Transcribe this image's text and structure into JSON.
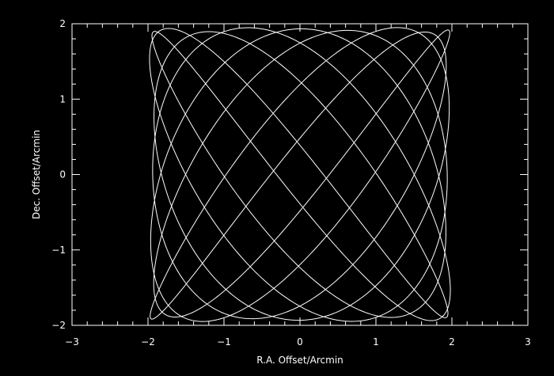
{
  "colors": {
    "background": "#000000",
    "foreground": "#ffffff"
  },
  "chart_data": {
    "type": "line",
    "title": "",
    "xlabel": "R.A. Offset/Arcmin",
    "ylabel": "Dec. Offset/Arcmin",
    "xlim": [
      -3,
      3
    ],
    "ylim": [
      -2,
      2
    ],
    "x_ticks": [
      -3,
      -2,
      -1,
      0,
      1,
      2,
      3
    ],
    "x_tick_labels": [
      "−3",
      "−2",
      "−1",
      "0",
      "1",
      "2",
      "3"
    ],
    "y_ticks": [
      -2,
      -1,
      0,
      1,
      2
    ],
    "y_tick_labels": [
      "−2",
      "−1",
      "0",
      "1",
      "2"
    ],
    "grid": false,
    "legend": "none",
    "series": [
      {
        "pattern": "curvy-pong scan",
        "x_amplitude": 1.95,
        "y_amplitude": 1.92,
        "x_periods": 7,
        "y_periods": 9,
        "sample_count": 2400
      }
    ]
  }
}
